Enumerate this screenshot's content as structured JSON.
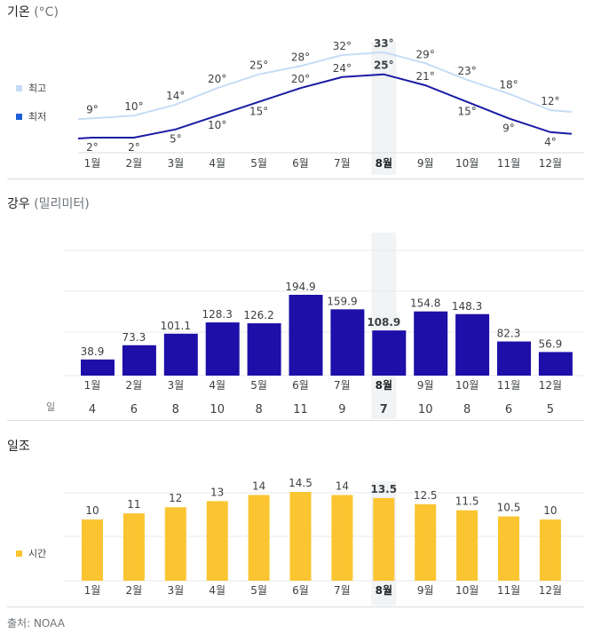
{
  "highlight_index": 7,
  "colors": {
    "high_line": "#c6dcf5",
    "low_line": "#1a1aa6",
    "rain_bar": "#1d0fa8",
    "sun_bar": "#fbc531",
    "highlight_band": "#f1f3f4",
    "legend_high": "#c6dcf5",
    "legend_low": "#1a5fd6",
    "legend_sun": "#fbc531"
  },
  "temperature": {
    "title": "기온",
    "unit": "(°C)",
    "legend_high": "최고",
    "legend_low": "최저"
  },
  "precipitation": {
    "title": "강우",
    "unit": "(밀리미터)",
    "days_label": "일"
  },
  "sunshine": {
    "title": "일조",
    "legend": "시간"
  },
  "source": "출처: NOAA",
  "chart_data": [
    {
      "type": "line",
      "title": "기온 (°C)",
      "categories": [
        "1월",
        "2월",
        "3월",
        "4월",
        "5월",
        "6월",
        "7월",
        "8월",
        "9월",
        "10월",
        "11월",
        "12월"
      ],
      "series": [
        {
          "name": "최고",
          "values": [
            9,
            10,
            14,
            20,
            25,
            28,
            32,
            33,
            29,
            23,
            18,
            12
          ],
          "labels": [
            "9°",
            "10°",
            "14°",
            "20°",
            "25°",
            "28°",
            "32°",
            "33°",
            "29°",
            "23°",
            "18°",
            "12°"
          ]
        },
        {
          "name": "최저",
          "values": [
            2,
            2,
            5,
            10,
            15,
            20,
            24,
            25,
            21,
            15,
            9,
            4
          ],
          "labels": [
            "2°",
            "2°",
            "5°",
            "10°",
            "15°",
            "20°",
            "24°",
            "25°",
            "21°",
            "15°",
            "9°",
            "4°"
          ]
        }
      ]
    },
    {
      "type": "bar",
      "title": "강우 (밀리미터)",
      "categories": [
        "1월",
        "2월",
        "3월",
        "4월",
        "5월",
        "6월",
        "7월",
        "8월",
        "9월",
        "10월",
        "11월",
        "12월"
      ],
      "values": [
        38.9,
        73.3,
        101.1,
        128.3,
        126.2,
        194.9,
        159.9,
        108.9,
        154.8,
        148.3,
        82.3,
        56.9
      ],
      "labels": [
        "38.9",
        "73.3",
        "101.1",
        "128.3",
        "126.2",
        "194.9",
        "159.9",
        "108.9",
        "154.8",
        "148.3",
        "82.3",
        "56.9"
      ],
      "days": [
        "4",
        "6",
        "8",
        "10",
        "8",
        "11",
        "9",
        "7",
        "10",
        "8",
        "6",
        "5"
      ],
      "grid": true
    },
    {
      "type": "bar",
      "title": "일조",
      "categories": [
        "1월",
        "2월",
        "3월",
        "4월",
        "5월",
        "6월",
        "7월",
        "8월",
        "9월",
        "10월",
        "11월",
        "12월"
      ],
      "values": [
        10,
        11,
        12,
        13,
        14,
        14.5,
        14,
        13.5,
        12.5,
        11.5,
        10.5,
        10
      ],
      "labels": [
        "10",
        "11",
        "12",
        "13",
        "14",
        "14.5",
        "14",
        "13.5",
        "12.5",
        "11.5",
        "10.5",
        "10"
      ],
      "grid": true
    }
  ]
}
